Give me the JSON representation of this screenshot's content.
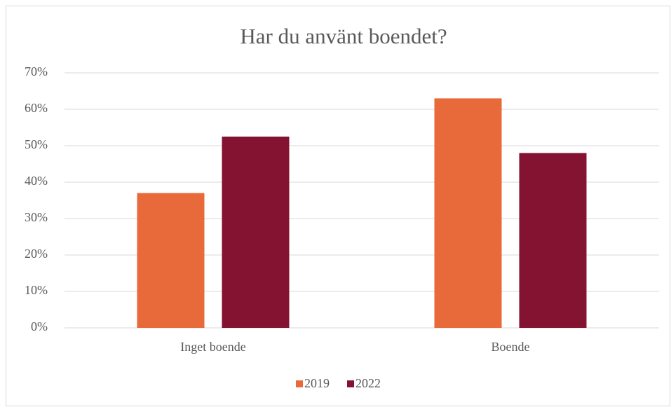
{
  "chart_data": {
    "type": "bar",
    "title": "Har du använt boendet?",
    "categories": [
      "Inget boende",
      "Boende"
    ],
    "series": [
      {
        "name": "2019",
        "color": "#e8693a",
        "values": [
          37,
          63
        ]
      },
      {
        "name": "2022",
        "color": "#831331",
        "values": [
          52.5,
          48
        ]
      }
    ],
    "ylim": [
      0,
      70
    ],
    "yticks": [
      {
        "value": 0,
        "label": "0%"
      },
      {
        "value": 10,
        "label": "10%"
      },
      {
        "value": 20,
        "label": "20%"
      },
      {
        "value": 30,
        "label": "30%"
      },
      {
        "value": 40,
        "label": "40%"
      },
      {
        "value": 50,
        "label": "50%"
      },
      {
        "value": 60,
        "label": "60%"
      },
      {
        "value": 70,
        "label": "70%"
      }
    ],
    "grid": true,
    "legend": "bottom"
  }
}
